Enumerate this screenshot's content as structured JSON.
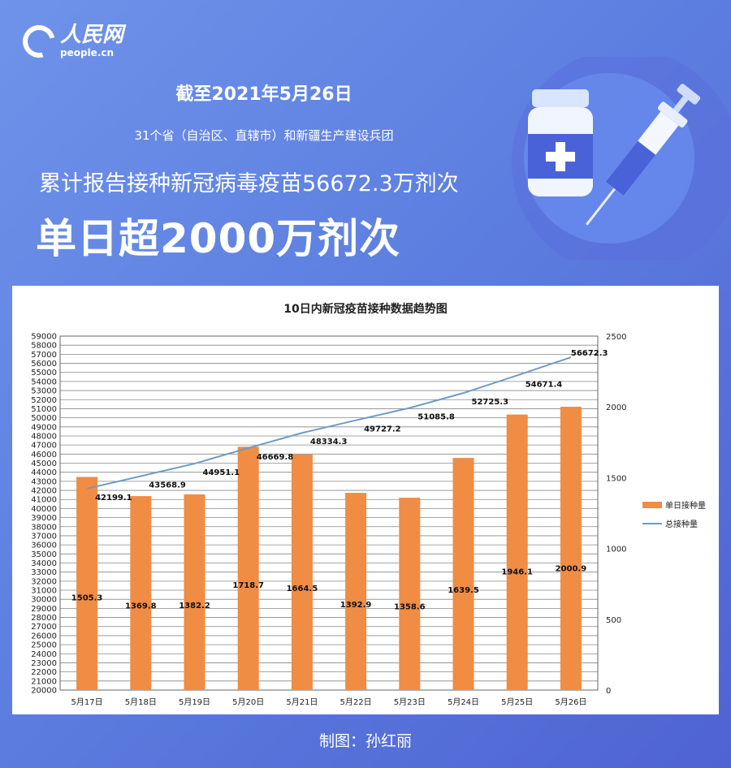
{
  "header": {
    "logo_cn": "人民网",
    "logo_en": "people.cn",
    "date_line": "截至2021年5月26日",
    "scope_line": "31个省（自治区、直辖市）和新疆生产建设兵团",
    "total_line": "累计报告接种新冠病毒疫苗56672.3万剂次",
    "headline": "单日超2000万剂次"
  },
  "footer": {
    "credit": "制图：孙红丽"
  },
  "colors": {
    "bar": "#f08c44",
    "line": "#6f9cc4",
    "background": "#5d7fe0"
  },
  "icons": [
    "vaccine-bottle-icon",
    "syringe-icon"
  ],
  "chart_data": {
    "type": "bar+line",
    "title": "10日内新冠疫苗接种数据趋势图",
    "categories": [
      "5月17日",
      "5月18日",
      "5月19日",
      "5月20日",
      "5月21日",
      "5月22日",
      "5月23日",
      "5月24日",
      "5月25日",
      "5月26日"
    ],
    "series": [
      {
        "name": "单日接种量",
        "type": "bar",
        "axis": "right",
        "values": [
          1505.3,
          1369.8,
          1382.2,
          1718.7,
          1664.5,
          1392.9,
          1358.6,
          1639.5,
          1946.1,
          2000.9
        ]
      },
      {
        "name": "总接种量",
        "type": "line",
        "axis": "left",
        "values": [
          42199.1,
          43568.9,
          44951.1,
          46669.8,
          48334.3,
          49727.2,
          51085.8,
          52725.3,
          54671.4,
          56672.3
        ]
      }
    ],
    "left_axis": {
      "range": [
        20000,
        59000
      ],
      "step": 1000
    },
    "right_axis": {
      "range": [
        0,
        2500
      ],
      "step": 500
    },
    "grid": true,
    "legend": "right"
  }
}
